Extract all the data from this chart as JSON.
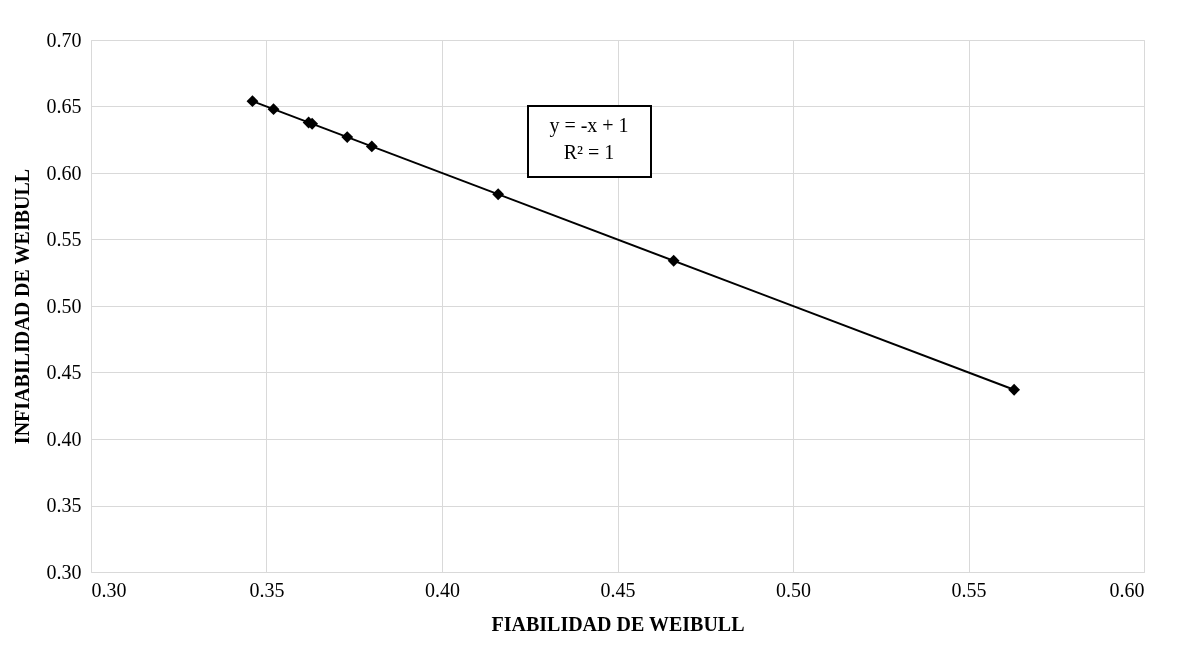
{
  "chart_data": {
    "type": "scatter",
    "xlabel": "FIABILIDAD DE WEIBULL",
    "ylabel": "INFIABILIDAD DE WEIBULL",
    "series": [
      {
        "color": "#000000",
        "marker": "diamond",
        "x": [
          0.346,
          0.352,
          0.362,
          0.363,
          0.373,
          0.38,
          0.416,
          0.466,
          0.563
        ],
        "values": [
          0.654,
          0.648,
          0.638,
          0.637,
          0.627,
          0.62,
          0.584,
          0.534,
          0.437
        ]
      },
      {
        "type": "line",
        "color": "#000000",
        "marker": "none",
        "line_style": "solid",
        "x": [
          0.346,
          0.563
        ],
        "values": [
          0.654,
          0.437
        ]
      }
    ],
    "annotations": [
      "y = -x + 1\nR² = 1"
    ],
    "xlim": [
      0.3,
      0.6
    ],
    "xticks": [
      {
        "value": 0.3,
        "label": "0.30"
      },
      0.35,
      {
        "value": 0.4,
        "label": "0.40"
      },
      0.45,
      {
        "value": 0.5,
        "label": "0.50"
      },
      0.55,
      {
        "value": 0.6,
        "label": "0.60"
      }
    ],
    "ylim": [
      0.3,
      0.7
    ],
    "yticks": [
      {
        "value": 0.3,
        "label": "0.30"
      },
      0.35,
      {
        "value": 0.4,
        "label": "0.40"
      },
      0.45,
      {
        "value": 0.5,
        "label": "0.50"
      },
      0.55,
      {
        "value": 0.6,
        "label": "0.60"
      },
      0.65,
      {
        "value": 0.7,
        "label": "0.70"
      }
    ],
    "grid": true
  }
}
